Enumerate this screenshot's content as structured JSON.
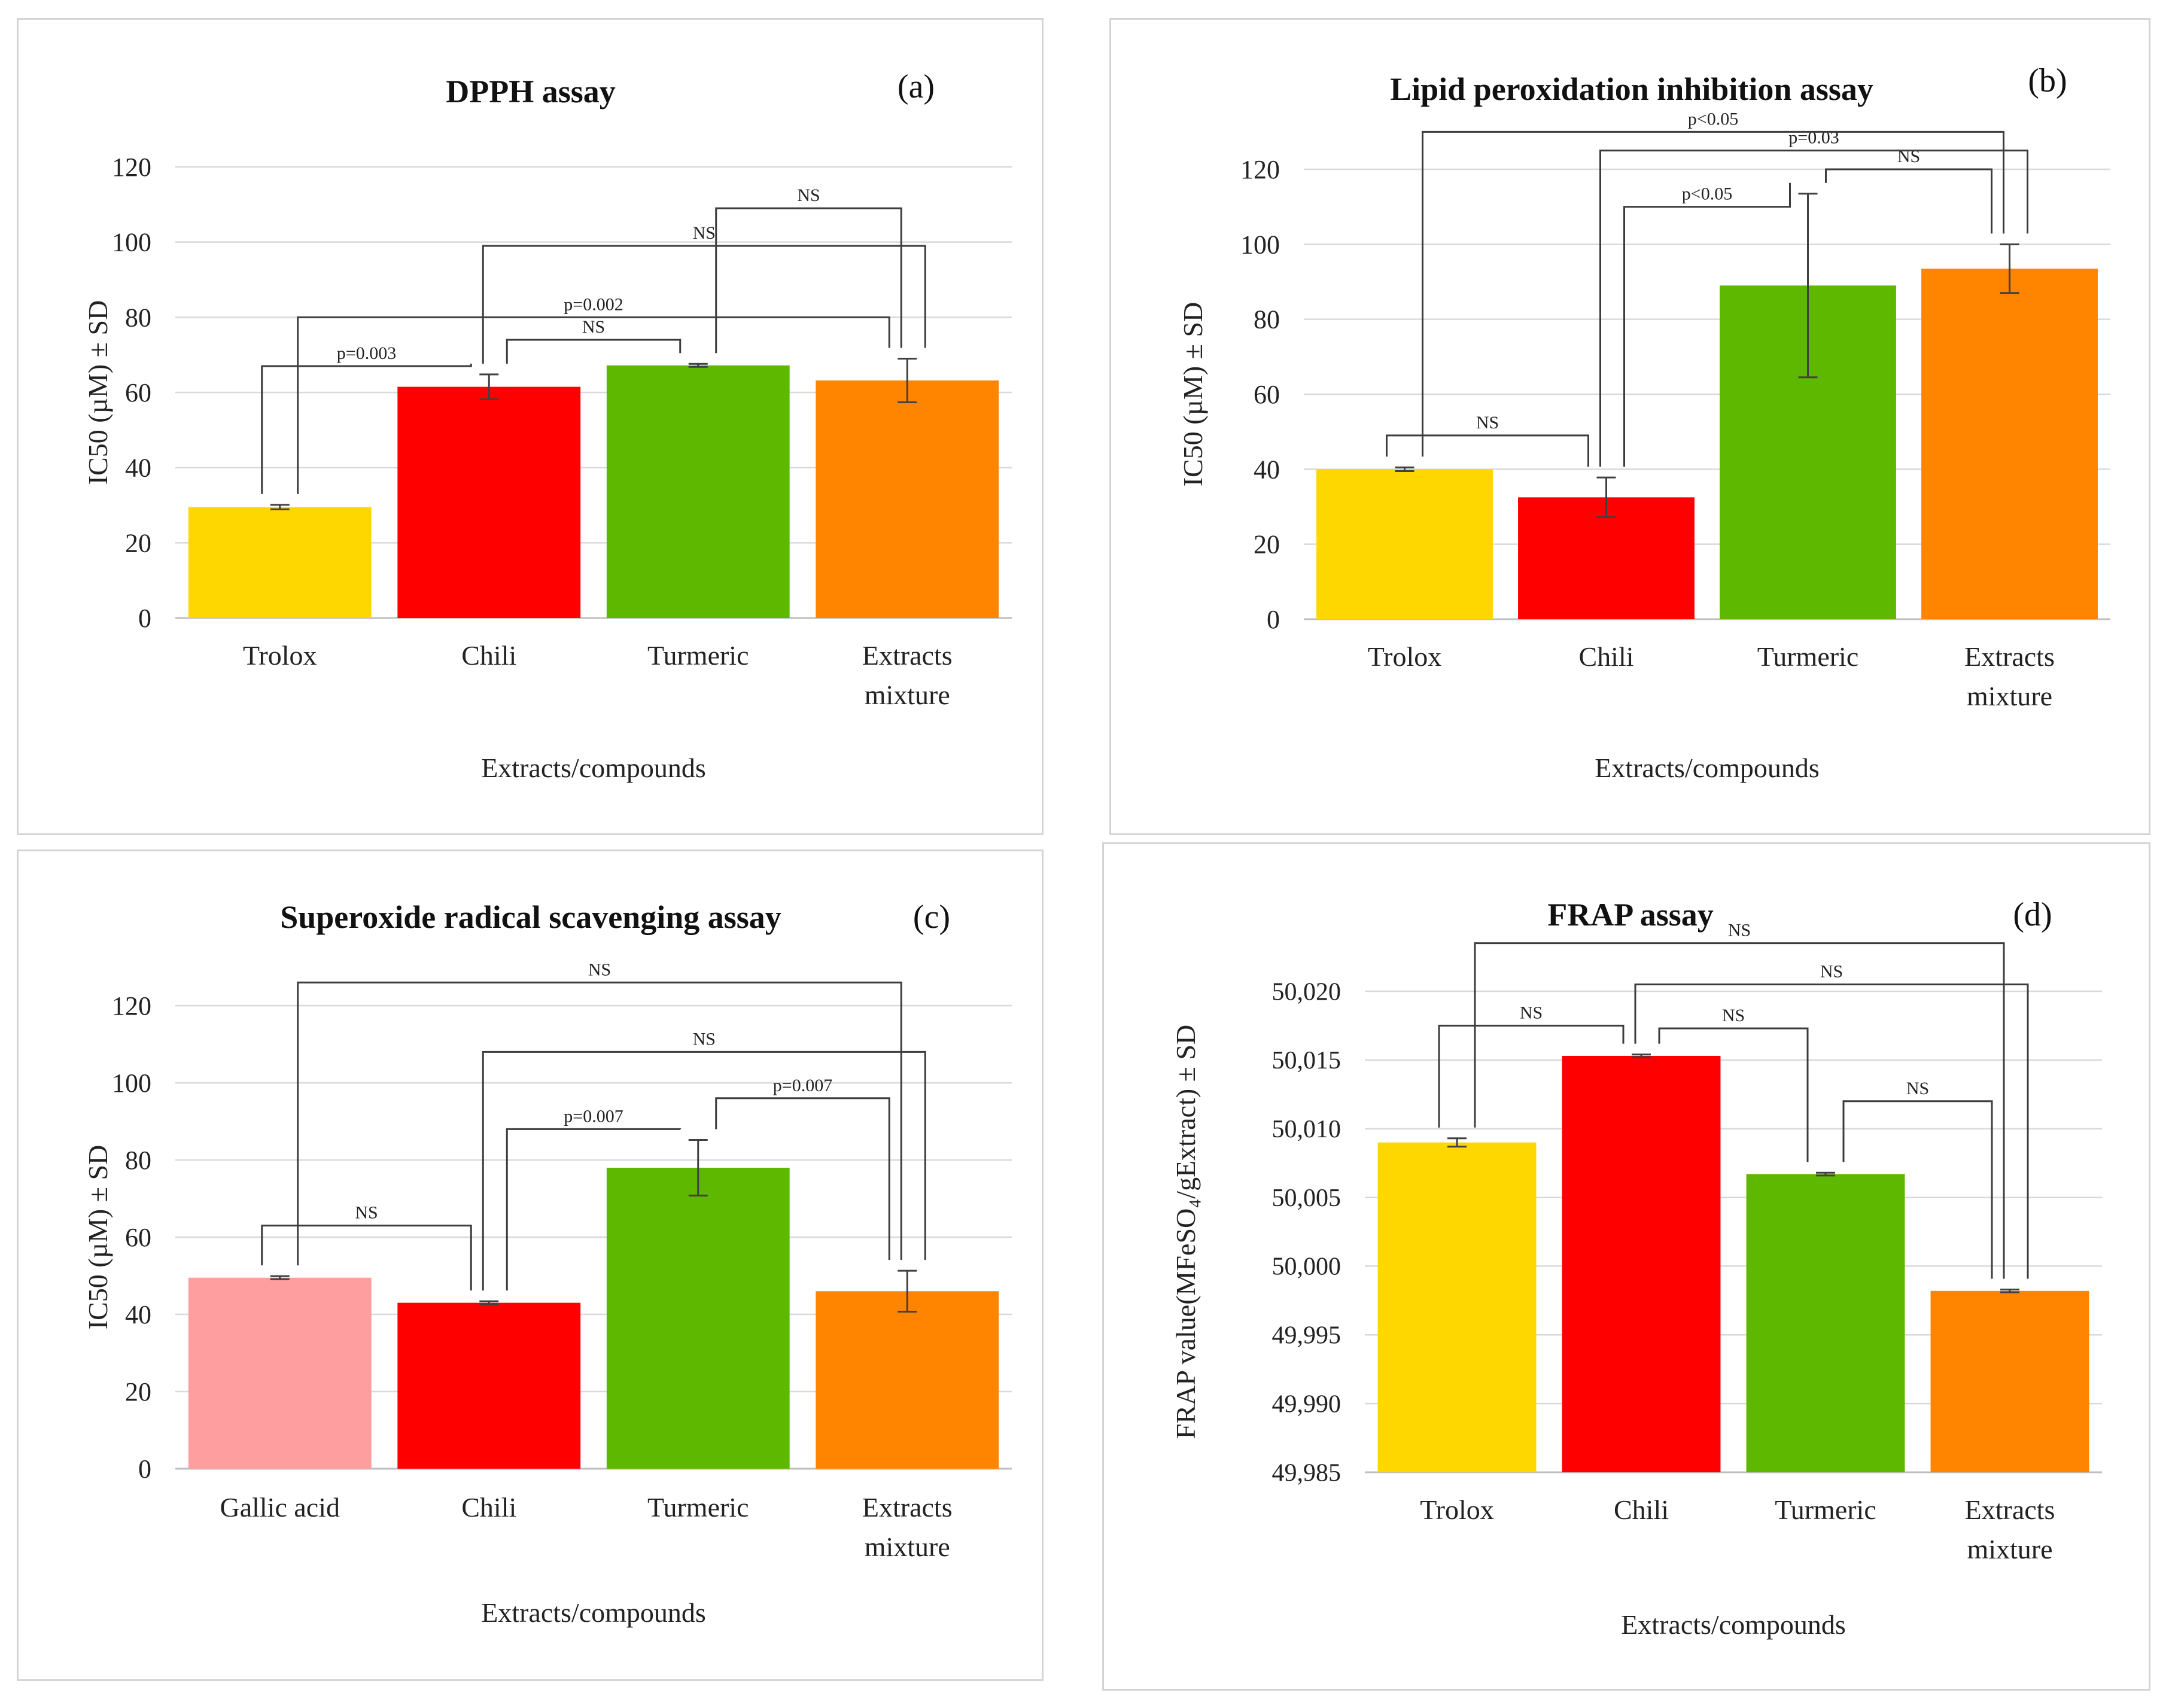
{
  "colors": {
    "yellow": "#ffd700",
    "red": "#ff0000",
    "green": "#5eb800",
    "orange": "#ff8400",
    "pink": "#ff9e9e",
    "grid": "#d9d9d9",
    "axis": "#bfbfbf",
    "bracket": "#3c3c3c"
  },
  "chart_data": [
    {
      "type": "bar",
      "panel_label": "(a)",
      "title": "DPPH assay",
      "xlabel": "Extracts/compounds",
      "ylabel": "IC50 (µM)  ± SD",
      "ylim": [
        0,
        120
      ],
      "yticks": [
        0,
        20,
        40,
        60,
        80,
        100,
        120
      ],
      "ytick_labels": [
        "0",
        "20",
        "40",
        "60",
        "80",
        "100",
        "120"
      ],
      "categories": [
        [
          "Trolox"
        ],
        [
          "Chili"
        ],
        [
          "Turmeric"
        ],
        [
          "Extracts",
          "mixture"
        ]
      ],
      "values": [
        29.5,
        61.5,
        67.2,
        63.2
      ],
      "errors": [
        0.6,
        3.3,
        0.4,
        5.8
      ],
      "bar_colors": [
        "yellow",
        "red",
        "green",
        "orange"
      ],
      "comparisons": [
        {
          "from": 0,
          "to": 1,
          "level": 67,
          "label": "p=0.003"
        },
        {
          "from": 1,
          "to": 2,
          "level": 74,
          "label": "NS"
        },
        {
          "from": 0,
          "to": 3,
          "level": 80,
          "label": "p=0.002"
        },
        {
          "from": 1,
          "to": 3,
          "level": 99,
          "label": "NS"
        },
        {
          "from": 2,
          "to": 3,
          "level": 109,
          "label": "NS"
        }
      ]
    },
    {
      "type": "bar",
      "panel_label": "(b)",
      "title": "Lipid peroxidation inhibition  assay",
      "xlabel": "Extracts/compounds",
      "ylabel": "IC50 (µM)  ± SD",
      "ylim": [
        0,
        120
      ],
      "yticks": [
        0,
        20,
        40,
        60,
        80,
        100,
        120
      ],
      "ytick_labels": [
        "0",
        "20",
        "40",
        "60",
        "80",
        "100",
        "120"
      ],
      "categories": [
        [
          "Trolox"
        ],
        [
          "Chili"
        ],
        [
          "Turmeric"
        ],
        [
          "Extracts",
          "mixture"
        ]
      ],
      "values": [
        40.0,
        32.5,
        89.0,
        93.5
      ],
      "errors": [
        0.5,
        5.3,
        24.5,
        6.5
      ],
      "bar_colors": [
        "yellow",
        "red",
        "green",
        "orange"
      ],
      "comparisons": [
        {
          "from": 0,
          "to": 1,
          "level": 49,
          "label": "NS"
        },
        {
          "from": 1,
          "to": 2,
          "level": 110,
          "label": "p<0.05"
        },
        {
          "from": 2,
          "to": 3,
          "level": 120,
          "label": "NS"
        },
        {
          "from": 1,
          "to": 3,
          "level": 125,
          "label": "p=0.03"
        },
        {
          "from": 0,
          "to": 3,
          "level": 130,
          "label": "p<0.05"
        }
      ]
    },
    {
      "type": "bar",
      "panel_label": "(c)",
      "title": "Superoxide radical scavenging assay",
      "xlabel": "Extracts/compounds",
      "ylabel": "IC50 (µM)  ± SD",
      "ylim": [
        0,
        120
      ],
      "yticks": [
        0,
        20,
        40,
        60,
        80,
        100,
        120
      ],
      "ytick_labels": [
        "0",
        "20",
        "40",
        "60",
        "80",
        "100",
        "120"
      ],
      "categories": [
        [
          "Gallic acid"
        ],
        [
          "Chili"
        ],
        [
          "Turmeric"
        ],
        [
          "Extracts",
          "mixture"
        ]
      ],
      "values": [
        49.5,
        43.0,
        78.0,
        46.0
      ],
      "errors": [
        0.4,
        0.4,
        7.2,
        5.3
      ],
      "bar_colors": [
        "pink",
        "red",
        "green",
        "orange"
      ],
      "comparisons": [
        {
          "from": 0,
          "to": 1,
          "level": 63,
          "label": "NS"
        },
        {
          "from": 1,
          "to": 2,
          "level": 88,
          "label": "p=0.007"
        },
        {
          "from": 2,
          "to": 3,
          "level": 96,
          "label": "p=0.007"
        },
        {
          "from": 1,
          "to": 3,
          "level": 108,
          "label": "NS"
        },
        {
          "from": 0,
          "to": 3,
          "level": 126,
          "label": "NS"
        }
      ]
    },
    {
      "type": "bar",
      "panel_label": "(d)",
      "title": "FRAP assay",
      "xlabel": "Extracts/compounds",
      "ylabel": "FRAP value(MFeSO₄/gExtract) ± SD",
      "ylim": [
        49.985,
        50.02
      ],
      "yticks": [
        49.985,
        49.99,
        49.995,
        50.0,
        50.005,
        50.01,
        50.015,
        50.02
      ],
      "ytick_labels": [
        "49,985",
        "49,990",
        "49,995",
        "50,000",
        "50,005",
        "50,010",
        "50,015",
        "50,020"
      ],
      "categories": [
        [
          "Trolox"
        ],
        [
          "Chili"
        ],
        [
          "Turmeric"
        ],
        [
          "Extracts",
          "mixture"
        ]
      ],
      "values": [
        50.009,
        50.0153,
        50.0067,
        49.9982
      ],
      "errors": [
        0.0003,
        0.0001,
        0.0001,
        0.0001
      ],
      "bar_colors": [
        "yellow",
        "red",
        "green",
        "orange"
      ],
      "comparisons": [
        {
          "from": 0,
          "to": 1,
          "level": 50.0175,
          "label": "NS"
        },
        {
          "from": 1,
          "to": 2,
          "level": 50.0173,
          "label": "NS"
        },
        {
          "from": 2,
          "to": 3,
          "level": 50.012,
          "label": "NS"
        },
        {
          "from": 1,
          "to": 3,
          "level": 50.0205,
          "label": "NS"
        },
        {
          "from": 0,
          "to": 3,
          "level": 50.0235,
          "label": "NS"
        }
      ]
    }
  ]
}
